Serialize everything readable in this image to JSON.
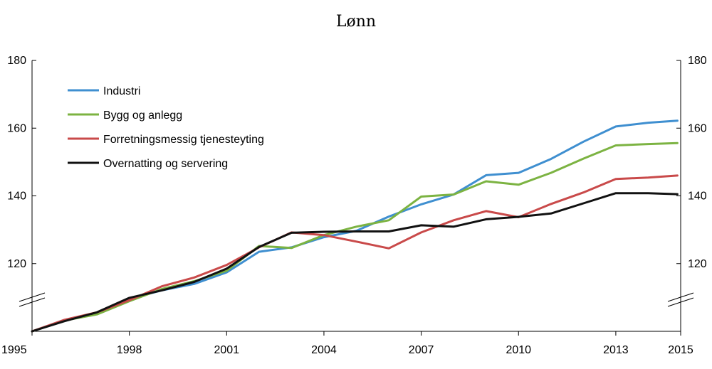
{
  "chart_data": {
    "type": "line",
    "title": "Lønn",
    "xlabel": "",
    "ylabel": "",
    "xlim": [
      1995,
      2015
    ],
    "ylim": [
      100,
      180
    ],
    "x_ticks": [
      "1995",
      "1998",
      "2001",
      "2004",
      "2007",
      "2010",
      "2013",
      "2015"
    ],
    "x_tick_values": [
      1995,
      1998,
      2001,
      2004,
      2007,
      2010,
      2013,
      2015
    ],
    "y_ticks": [
      120,
      140,
      160,
      180
    ],
    "y_ticks_right": [
      120,
      140,
      160,
      180
    ],
    "axis_break": true,
    "grid": false,
    "legend_position": "top-left",
    "x": [
      1995,
      1996,
      1997,
      1998,
      1999,
      2000,
      2001,
      2002,
      2003,
      2004,
      2005,
      2006,
      2007,
      2008,
      2009,
      2010,
      2011,
      2012,
      2013,
      2014,
      2014.9
    ],
    "series": [
      {
        "name": "Industri",
        "color": "#3F8FD0",
        "values": [
          100.0,
          103.2,
          105.4,
          109.6,
          112.1,
          114.0,
          117.4,
          123.5,
          124.8,
          127.8,
          129.7,
          133.9,
          137.5,
          140.4,
          146.1,
          146.8,
          150.9,
          156.0,
          160.5,
          161.6,
          162.2
        ]
      },
      {
        "name": "Bygg og anlegg",
        "color": "#7CB342",
        "values": [
          100.0,
          103.2,
          105.0,
          108.9,
          112.5,
          114.8,
          117.9,
          125.2,
          124.6,
          128.4,
          130.9,
          132.8,
          139.8,
          140.4,
          144.3,
          143.3,
          146.8,
          151.0,
          154.9,
          155.3,
          155.6
        ]
      },
      {
        "name": "Forretningsmessig tjenesteyting",
        "color": "#C94A4A",
        "values": [
          100.0,
          103.4,
          105.6,
          109.2,
          113.3,
          115.9,
          119.6,
          124.8,
          129.2,
          128.4,
          126.5,
          124.5,
          129.2,
          132.8,
          135.5,
          133.7,
          137.6,
          141.0,
          145.0,
          145.4,
          146.0
        ]
      },
      {
        "name": "Overnatting og servering",
        "color": "#111111",
        "values": [
          100.0,
          103.0,
          105.6,
          109.9,
          112.1,
          114.6,
          118.5,
          124.9,
          129.1,
          129.4,
          129.5,
          129.5,
          131.3,
          130.9,
          133.1,
          133.8,
          134.8,
          137.8,
          140.8,
          140.8,
          140.5
        ]
      }
    ]
  }
}
